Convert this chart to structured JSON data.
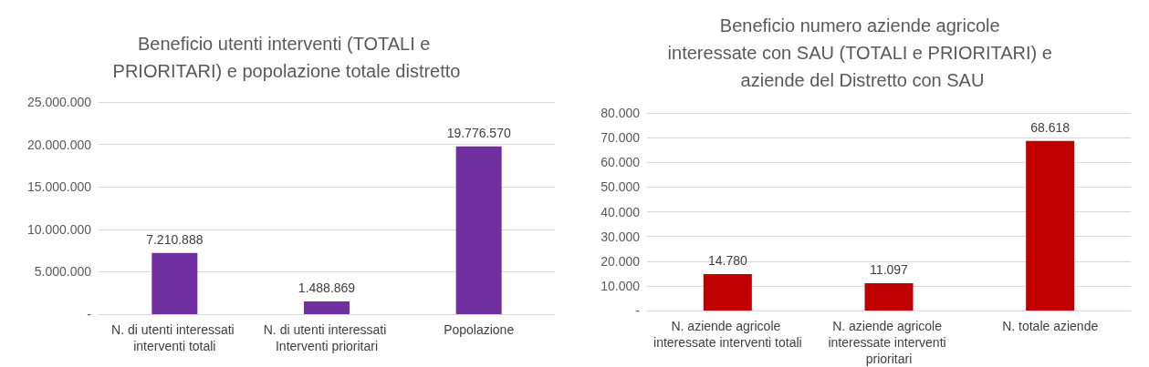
{
  "chart_data": [
    {
      "type": "bar",
      "title": "Beneficio utenti interventi (TOTALI e PRIORITARI) e popolazione totale distretto",
      "categories": [
        "N. di utenti interessati interventi totali",
        "N. di utenti interessati Interventi prioritari",
        "Popolazione"
      ],
      "values": [
        7210888,
        1488869,
        19776570
      ],
      "value_labels": [
        "7.210.888",
        "1.488.869",
        "19.776.570"
      ],
      "color": "#7030a0",
      "ylim": [
        0,
        25000000
      ],
      "yticks": [
        {
          "value": 0,
          "label": "-"
        },
        {
          "value": 5000000,
          "label": "5.000.000"
        },
        {
          "value": 10000000,
          "label": "10.000.000"
        },
        {
          "value": 15000000,
          "label": "15.000.000"
        },
        {
          "value": 20000000,
          "label": "20.000.000"
        },
        {
          "value": 25000000,
          "label": "25.000.000"
        }
      ],
      "grid": "y"
    },
    {
      "type": "bar",
      "title": "Beneficio numero aziende agricole interessate con SAU (TOTALI e PRIORITARI) e aziende del Distretto con SAU",
      "categories": [
        "N. aziende agricole interessate interventi totali",
        "N. aziende agricole interessate interventi prioritari",
        "N. totale aziende"
      ],
      "values": [
        14780,
        11097,
        68618
      ],
      "value_labels": [
        "14.780",
        "11.097",
        "68.618"
      ],
      "color": "#c00000",
      "ylim": [
        0,
        80000
      ],
      "yticks": [
        {
          "value": 0,
          "label": "-"
        },
        {
          "value": 10000,
          "label": "10.000"
        },
        {
          "value": 20000,
          "label": "20.000"
        },
        {
          "value": 30000,
          "label": "30.000"
        },
        {
          "value": 40000,
          "label": "40.000"
        },
        {
          "value": 50000,
          "label": "50.000"
        },
        {
          "value": 60000,
          "label": "60.000"
        },
        {
          "value": 70000,
          "label": "70.000"
        },
        {
          "value": 80000,
          "label": "80.000"
        }
      ],
      "grid": "y"
    }
  ]
}
